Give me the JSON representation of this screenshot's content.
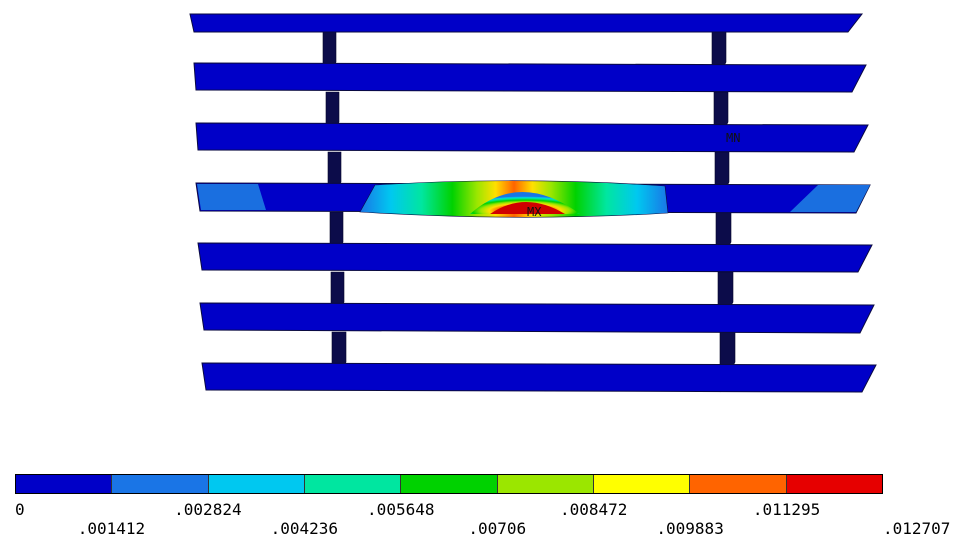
{
  "model": {
    "max_marker": "MX",
    "min_marker": "MN"
  },
  "legend": {
    "colors": [
      "#0000c8",
      "#1a75e6",
      "#00c8f0",
      "#00e6a0",
      "#00d200",
      "#9be600",
      "#ffff00",
      "#ff6400",
      "#e60000"
    ],
    "labels": [
      "0",
      ".001412",
      ".002824",
      ".004236",
      ".005648",
      ".00706",
      ".008472",
      ".009883",
      ".011295",
      ".012707"
    ]
  }
}
